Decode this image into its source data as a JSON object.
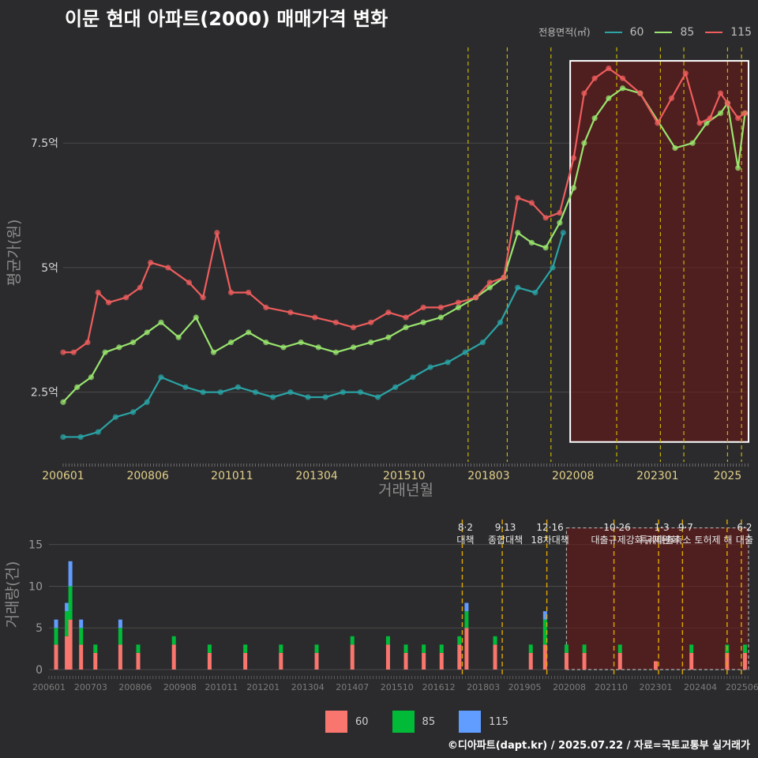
{
  "title": "이문 현대 아파트(2000) 매매가격 변화",
  "footer": "©디아파트(dapt.kr) / 2025.07.22 / 자료=국토교통부 실거래가",
  "legend_top": {
    "label": "전용면적(㎡)",
    "items": [
      {
        "name": "60",
        "color": "#2aa4a6"
      },
      {
        "name": "85",
        "color": "#99e56e"
      },
      {
        "name": "115",
        "color": "#ef5d5d"
      }
    ]
  },
  "legend_bottom": {
    "items": [
      {
        "name": "60",
        "color": "#f8766d"
      },
      {
        "name": "85",
        "color": "#00ba38"
      },
      {
        "name": "115",
        "color": "#619cff"
      }
    ]
  },
  "chart_data": [
    {
      "type": "line",
      "ylabel": "평균가(원)",
      "xlabel": "거래년월",
      "y_ticks": [
        {
          "value": 2.5,
          "label": "2.5억"
        },
        {
          "value": 5,
          "label": "5억"
        },
        {
          "value": 7.5,
          "label": "7.5억"
        }
      ],
      "ylim": [
        1.1,
        9.5
      ],
      "xlim": [
        2006.0,
        2025.6
      ],
      "x_ticks": [
        {
          "value": 2006.0,
          "label": "200601"
        },
        {
          "value": 2008.42,
          "label": "200806"
        },
        {
          "value": 2010.83,
          "label": "201011"
        },
        {
          "value": 2013.25,
          "label": "201304"
        },
        {
          "value": 2015.75,
          "label": "201510"
        },
        {
          "value": 2018.17,
          "label": "201803"
        },
        {
          "value": 2020.58,
          "label": "202008"
        },
        {
          "value": 2023.0,
          "label": "202301"
        },
        {
          "value": 2025.0,
          "label": "2025"
        }
      ],
      "policy_lines": [
        2017.58,
        2018.7,
        2019.95,
        2021.83,
        2023.08,
        2023.75,
        2025.0,
        2025.4
      ],
      "highlight_box": {
        "x": [
          2020.5,
          2025.6
        ],
        "y": [
          1.5,
          9.15
        ]
      },
      "series": [
        {
          "name": "60",
          "color": "#2aa4a6",
          "x": [
            2006.0,
            2006.5,
            2007.0,
            2007.5,
            2008.0,
            2008.4,
            2008.8,
            2009.5,
            2010.0,
            2010.5,
            2011.0,
            2011.5,
            2012.0,
            2012.5,
            2013.0,
            2013.5,
            2014.0,
            2014.5,
            2015.0,
            2015.5,
            2016.0,
            2016.5,
            2017.0,
            2017.5,
            2018.0,
            2018.5,
            2019.0,
            2019.5,
            2020.0,
            2020.3
          ],
          "values": [
            1.6,
            1.6,
            1.7,
            2.0,
            2.1,
            2.3,
            2.8,
            2.6,
            2.5,
            2.5,
            2.6,
            2.5,
            2.4,
            2.5,
            2.4,
            2.4,
            2.5,
            2.5,
            2.4,
            2.6,
            2.8,
            3.0,
            3.1,
            3.3,
            3.5,
            3.9,
            4.6,
            4.5,
            5.0,
            5.7
          ]
        },
        {
          "name": "85",
          "color": "#99e56e",
          "x": [
            2006.0,
            2006.4,
            2006.8,
            2007.2,
            2007.6,
            2008.0,
            2008.4,
            2008.8,
            2009.3,
            2009.8,
            2010.3,
            2010.8,
            2011.3,
            2011.8,
            2012.3,
            2012.8,
            2013.3,
            2013.8,
            2014.3,
            2014.8,
            2015.3,
            2015.8,
            2016.3,
            2016.8,
            2017.3,
            2017.8,
            2018.2,
            2018.6,
            2019.0,
            2019.4,
            2019.8,
            2020.2,
            2020.6,
            2020.9,
            2021.2,
            2021.6,
            2022.0,
            2022.5,
            2023.5,
            2024.0,
            2024.4,
            2024.8,
            2025.0,
            2025.3,
            2025.5
          ],
          "values": [
            2.3,
            2.6,
            2.8,
            3.3,
            3.4,
            3.5,
            3.7,
            3.9,
            3.6,
            4.0,
            3.3,
            3.5,
            3.7,
            3.5,
            3.4,
            3.5,
            3.4,
            3.3,
            3.4,
            3.5,
            3.6,
            3.8,
            3.9,
            4.0,
            4.2,
            4.4,
            4.6,
            4.8,
            5.7,
            5.5,
            5.4,
            5.9,
            6.6,
            7.5,
            8.0,
            8.4,
            8.6,
            8.5,
            7.4,
            7.5,
            7.9,
            8.1,
            8.3,
            7.0,
            8.1
          ]
        },
        {
          "name": "115",
          "color": "#ef5d5d",
          "x": [
            2006.0,
            2006.3,
            2006.7,
            2007.0,
            2007.3,
            2007.8,
            2008.2,
            2008.5,
            2009.0,
            2009.6,
            2010.0,
            2010.4,
            2010.8,
            2011.3,
            2011.8,
            2012.5,
            2013.2,
            2013.8,
            2014.3,
            2014.8,
            2015.3,
            2015.8,
            2016.3,
            2016.8,
            2017.3,
            2017.8,
            2018.2,
            2018.6,
            2019.0,
            2019.4,
            2019.8,
            2020.2,
            2020.6,
            2020.9,
            2021.2,
            2021.6,
            2022.0,
            2022.5,
            2023.0,
            2023.4,
            2023.8,
            2024.2,
            2024.5,
            2024.8,
            2025.0,
            2025.3,
            2025.5
          ],
          "values": [
            3.3,
            3.3,
            3.5,
            4.5,
            4.3,
            4.4,
            4.6,
            5.1,
            5.0,
            4.7,
            4.4,
            5.7,
            4.5,
            4.5,
            4.2,
            4.1,
            4.0,
            3.9,
            3.8,
            3.9,
            4.1,
            4.0,
            4.2,
            4.2,
            4.3,
            4.4,
            4.7,
            4.8,
            6.4,
            6.3,
            6.0,
            6.1,
            7.2,
            8.5,
            8.8,
            9.0,
            8.8,
            8.5,
            7.9,
            8.4,
            8.9,
            7.9,
            8.0,
            8.5,
            8.3,
            8.0,
            8.1
          ]
        }
      ]
    },
    {
      "type": "bar",
      "stacked": true,
      "ylabel": "거래량(건)",
      "y_ticks": [
        0,
        5,
        10,
        15
      ],
      "ylim": [
        0,
        18
      ],
      "xlim": [
        2006.0,
        2025.6
      ],
      "x_ticks": [
        {
          "value": 2006.0,
          "label": "200601"
        },
        {
          "value": 2007.17,
          "label": "200703"
        },
        {
          "value": 2008.42,
          "label": "200806"
        },
        {
          "value": 2009.67,
          "label": "200908"
        },
        {
          "value": 2010.83,
          "label": "201011"
        },
        {
          "value": 2012.0,
          "label": "201201"
        },
        {
          "value": 2013.25,
          "label": "201304"
        },
        {
          "value": 2014.5,
          "label": "201407"
        },
        {
          "value": 2015.75,
          "label": "201510"
        },
        {
          "value": 2016.92,
          "label": "201612"
        },
        {
          "value": 2018.17,
          "label": "201803"
        },
        {
          "value": 2019.33,
          "label": "201905"
        },
        {
          "value": 2020.58,
          "label": "202008"
        },
        {
          "value": 2021.75,
          "label": "202110"
        },
        {
          "value": 2023.0,
          "label": "202301"
        },
        {
          "value": 2024.25,
          "label": "202404"
        },
        {
          "value": 2025.42,
          "label": "202506"
        }
      ],
      "highlight_box": {
        "x": [
          2020.5,
          2025.6
        ],
        "y": [
          0,
          17
        ]
      },
      "policy_lines": [
        {
          "x": 2017.58,
          "date": "8·2",
          "label": "대책"
        },
        {
          "x": 2018.7,
          "date": "9·13",
          "label": "종합대책"
        },
        {
          "x": 2019.95,
          "date": "12·16",
          "label": "18차대책"
        },
        {
          "x": 2021.83,
          "date": "10·26",
          "label": "대출규제강화"
        },
        {
          "x": 2023.08,
          "date": "1·3",
          "label": "규제완화"
        },
        {
          "x": 2023.75,
          "date": "9·7",
          "label": "특례대출축소 토허제 해"
        },
        {
          "x": 2025.0,
          "date": "",
          "label": ""
        },
        {
          "x": 2025.4,
          "date": "6·2",
          "label": "대출"
        }
      ],
      "series": [
        {
          "name": "60",
          "color": "#f8766d",
          "x": [
            2006.2,
            2006.5,
            2006.6,
            2006.9,
            2007.3,
            2008.0,
            2008.5,
            2009.5,
            2010.5,
            2011.5,
            2012.5,
            2013.5,
            2014.5,
            2015.5,
            2016.0,
            2016.5,
            2017.0,
            2017.5,
            2017.7,
            2018.5,
            2019.5,
            2019.9,
            2020.5,
            2021.0,
            2022.0,
            2023.0,
            2024.0,
            2025.0,
            2025.5
          ],
          "values": [
            3,
            4,
            6,
            3,
            2,
            3,
            2,
            3,
            2,
            2,
            2,
            2,
            3,
            3,
            2,
            2,
            2,
            3,
            5,
            3,
            2,
            3,
            2,
            2,
            2,
            1,
            2,
            2,
            2
          ]
        },
        {
          "name": "85",
          "color": "#00ba38",
          "x": [
            2006.2,
            2006.5,
            2006.6,
            2006.9,
            2007.3,
            2008.0,
            2008.5,
            2009.5,
            2010.5,
            2011.5,
            2012.5,
            2013.5,
            2014.5,
            2015.5,
            2016.0,
            2016.5,
            2017.0,
            2017.5,
            2017.7,
            2018.5,
            2019.5,
            2019.9,
            2020.5,
            2021.0,
            2022.0,
            2023.0,
            2024.0,
            2025.0,
            2025.5
          ],
          "values": [
            2,
            3,
            4,
            2,
            1,
            2,
            1,
            1,
            1,
            1,
            1,
            1,
            1,
            1,
            1,
            1,
            1,
            1,
            2,
            1,
            1,
            3,
            1,
            1,
            1,
            0,
            1,
            1,
            1
          ]
        },
        {
          "name": "115",
          "color": "#619cff",
          "x": [
            2006.2,
            2006.5,
            2006.6,
            2006.9,
            2007.3,
            2008.0,
            2008.5,
            2009.5,
            2010.5,
            2011.5,
            2012.5,
            2013.5,
            2014.5,
            2015.5,
            2016.0,
            2016.5,
            2017.0,
            2017.5,
            2017.7,
            2018.5,
            2019.5,
            2019.9,
            2020.5,
            2021.0,
            2022.0,
            2023.0,
            2024.0,
            2025.0,
            2025.5
          ],
          "values": [
            1,
            1,
            3,
            1,
            0,
            1,
            0,
            0,
            0,
            0,
            0,
            0,
            0,
            0,
            0,
            0,
            0,
            0,
            1,
            0,
            0,
            1,
            0,
            0,
            0,
            0,
            0,
            0,
            0
          ]
        }
      ]
    }
  ]
}
